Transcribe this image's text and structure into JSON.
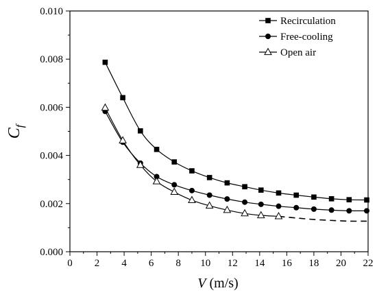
{
  "chart_data": {
    "type": "line",
    "title": "",
    "xlabel": {
      "symbol": "V",
      "unit": " (m/s)"
    },
    "ylabel": {
      "symbol": "C",
      "subscript": "f"
    },
    "xlim": [
      0,
      22
    ],
    "ylim": [
      0.0,
      0.01
    ],
    "x_ticks": [
      "0",
      "2",
      "4",
      "6",
      "8",
      "10",
      "12",
      "14",
      "16",
      "18",
      "20",
      "22"
    ],
    "y_ticks": [
      "0.000",
      "0.002",
      "0.004",
      "0.006",
      "0.008",
      "0.010"
    ],
    "grid": false,
    "legend_position": "top-right",
    "series": [
      {
        "name": "Recirculation",
        "marker": "filled-square",
        "x": [
          2.6,
          3.9,
          5.2,
          6.4,
          7.7,
          9.0,
          10.3,
          11.6,
          12.9,
          14.1,
          15.4,
          16.7,
          18.0,
          19.3,
          20.6,
          21.9
        ],
        "y": [
          0.00787,
          0.0064,
          0.00502,
          0.00425,
          0.00373,
          0.00336,
          0.00308,
          0.00286,
          0.0027,
          0.00256,
          0.00244,
          0.00235,
          0.00227,
          0.0022,
          0.00216,
          0.00215
        ],
        "curve_x": [
          2.6,
          3.9,
          5.2,
          6.4,
          7.7,
          9.0,
          10.3,
          11.6,
          12.9,
          14.1,
          15.4,
          16.7,
          18.0,
          19.3,
          20.6,
          21.9
        ],
        "curve_y": [
          0.00787,
          0.0064,
          0.00502,
          0.00425,
          0.00373,
          0.00336,
          0.00308,
          0.00286,
          0.0027,
          0.00256,
          0.00244,
          0.00235,
          0.00227,
          0.0022,
          0.00216,
          0.00215
        ]
      },
      {
        "name": "Free-cooling",
        "marker": "filled-circle",
        "x": [
          2.6,
          3.9,
          5.2,
          6.4,
          7.7,
          9.0,
          10.3,
          11.6,
          12.9,
          14.1,
          15.4,
          16.7,
          18.0,
          19.3,
          20.6,
          21.9
        ],
        "y": [
          0.00583,
          0.00455,
          0.00368,
          0.00312,
          0.00278,
          0.00254,
          0.00235,
          0.00219,
          0.00206,
          0.00197,
          0.00189,
          0.00183,
          0.00177,
          0.00173,
          0.0017,
          0.0017
        ],
        "curve_x": [
          2.6,
          3.9,
          5.2,
          6.4,
          7.7,
          9.0,
          10.3,
          11.6,
          12.9,
          14.1,
          15.4,
          16.7,
          18.0,
          19.3,
          20.6,
          21.9
        ],
        "curve_y": [
          0.00583,
          0.00455,
          0.00368,
          0.00312,
          0.00278,
          0.00254,
          0.00235,
          0.00219,
          0.00206,
          0.00197,
          0.00189,
          0.00183,
          0.00177,
          0.00173,
          0.0017,
          0.0017
        ]
      },
      {
        "name": "Open air",
        "marker": "open-triangle",
        "x": [
          2.6,
          3.9,
          5.2,
          6.4,
          7.7,
          9.0,
          10.3,
          11.6,
          12.9,
          14.1,
          15.4
        ],
        "y": [
          0.00598,
          0.00462,
          0.0036,
          0.00292,
          0.00248,
          0.00214,
          0.00191,
          0.00173,
          0.00159,
          0.00151,
          0.00147
        ],
        "curve_x": [
          2.6,
          3.9,
          5.2,
          6.4,
          7.7,
          9.0,
          10.3,
          11.6,
          12.9,
          14.1,
          15.4
        ],
        "curve_y": [
          0.00598,
          0.00462,
          0.0036,
          0.00292,
          0.00248,
          0.00214,
          0.00191,
          0.00173,
          0.00159,
          0.00151,
          0.00147
        ],
        "extrapolation_x": [
          15.4,
          16.7,
          18.0,
          19.3,
          20.6,
          21.9
        ],
        "extrapolation_y": [
          0.00147,
          0.0014,
          0.00134,
          0.0013,
          0.00127,
          0.00127
        ]
      }
    ]
  }
}
